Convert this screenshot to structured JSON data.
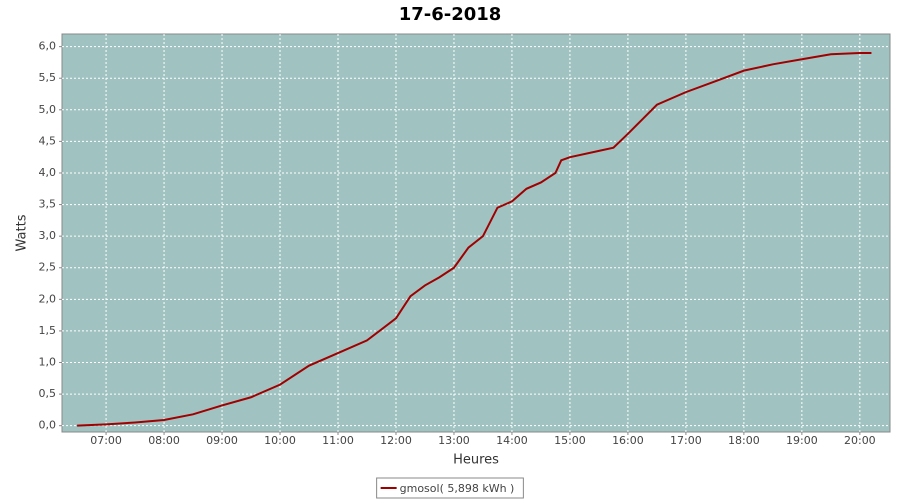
{
  "chart_data": {
    "type": "line",
    "title": "17-6-2018",
    "x_label": "Heures",
    "y_label": "Watts",
    "x": [
      6.5,
      7.0,
      7.5,
      8.0,
      8.5,
      9.0,
      9.5,
      10.0,
      10.5,
      11.0,
      11.5,
      12.0,
      12.25,
      12.5,
      12.75,
      13.0,
      13.25,
      13.5,
      13.75,
      14.0,
      14.25,
      14.5,
      14.75,
      14.85,
      15.0,
      15.5,
      15.75,
      16.0,
      16.25,
      16.5,
      17.0,
      17.5,
      18.0,
      18.5,
      19.0,
      19.5,
      20.0,
      20.2
    ],
    "series": [
      {
        "name": "gmosol( 5,898 kWh )",
        "color": "#a00000",
        "values": [
          0.0,
          0.02,
          0.05,
          0.09,
          0.18,
          0.32,
          0.45,
          0.65,
          0.95,
          1.15,
          1.35,
          1.7,
          2.05,
          2.22,
          2.35,
          2.5,
          2.82,
          3.0,
          3.45,
          3.55,
          3.75,
          3.85,
          4.0,
          4.2,
          4.25,
          4.35,
          4.4,
          4.62,
          4.85,
          5.08,
          5.28,
          5.45,
          5.62,
          5.72,
          5.8,
          5.88,
          5.9,
          5.9
        ]
      }
    ],
    "xlim": [
      6.24,
      20.52
    ],
    "xticks": [
      {
        "value": 7,
        "label": "07:00"
      },
      {
        "value": 8,
        "label": "08:00"
      },
      {
        "value": 9,
        "label": "09:00"
      },
      {
        "value": 10,
        "label": "10:00"
      },
      {
        "value": 11,
        "label": "11:00"
      },
      {
        "value": 12,
        "label": "12:00"
      },
      {
        "value": 13,
        "label": "13:00"
      },
      {
        "value": 14,
        "label": "14:00"
      },
      {
        "value": 15,
        "label": "15:00"
      },
      {
        "value": 16,
        "label": "16:00"
      },
      {
        "value": 17,
        "label": "17:00"
      },
      {
        "value": 18,
        "label": "18:00"
      },
      {
        "value": 19,
        "label": "19:00"
      },
      {
        "value": 20,
        "label": "20:00"
      }
    ],
    "ylim": [
      -0.1,
      6.2
    ],
    "yticks": [
      {
        "value": 0,
        "label": "0,0"
      },
      {
        "value": 0.5,
        "label": "0,5"
      },
      {
        "value": 1,
        "label": "1,0"
      },
      {
        "value": 1.5,
        "label": "1,5"
      },
      {
        "value": 2,
        "label": "2,0"
      },
      {
        "value": 2.5,
        "label": "2,5"
      },
      {
        "value": 3,
        "label": "3,0"
      },
      {
        "value": 3.5,
        "label": "3,5"
      },
      {
        "value": 4,
        "label": "4,0"
      },
      {
        "value": 4.5,
        "label": "4,5"
      },
      {
        "value": 5,
        "label": "5,0"
      },
      {
        "value": 5.5,
        "label": "5,5"
      },
      {
        "value": 6,
        "label": "6,0"
      }
    ],
    "grid": true,
    "plot_background": "#a0c3c2",
    "legend": "bottom"
  }
}
